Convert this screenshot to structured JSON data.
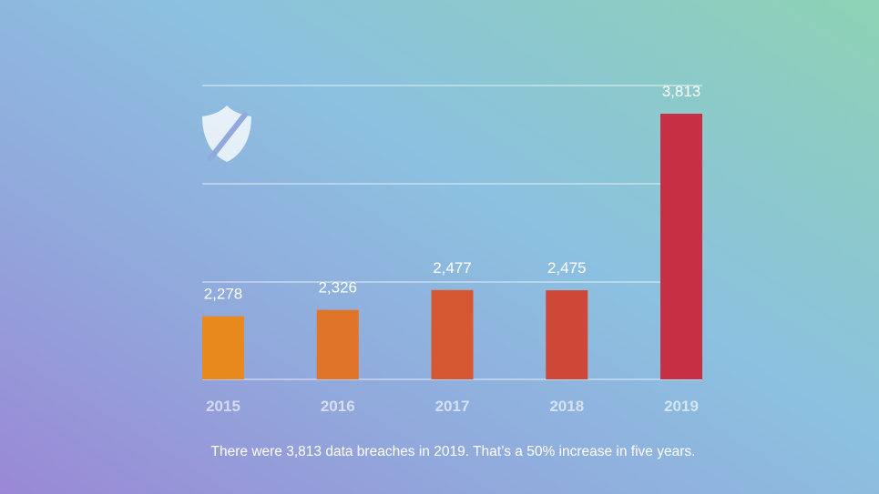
{
  "chart_data": {
    "type": "bar",
    "categories": [
      "2015",
      "2016",
      "2017",
      "2018",
      "2019"
    ],
    "values": [
      2278,
      2326,
      2477,
      2475,
      3813
    ],
    "value_labels": [
      "2,278",
      "2,326",
      "2,477",
      "2,475",
      "3,813"
    ],
    "bar_colors": [
      "#e8891d",
      "#e07428",
      "#d65833",
      "#cf4737",
      "#c62f44"
    ],
    "ylim": [
      1800,
      3900
    ],
    "grid": true,
    "title": "",
    "xlabel": "",
    "ylabel": ""
  },
  "icon": "shield-icon",
  "caption": "There were 3,813 data breaches in 2019. That’s a 50% increase in five years."
}
